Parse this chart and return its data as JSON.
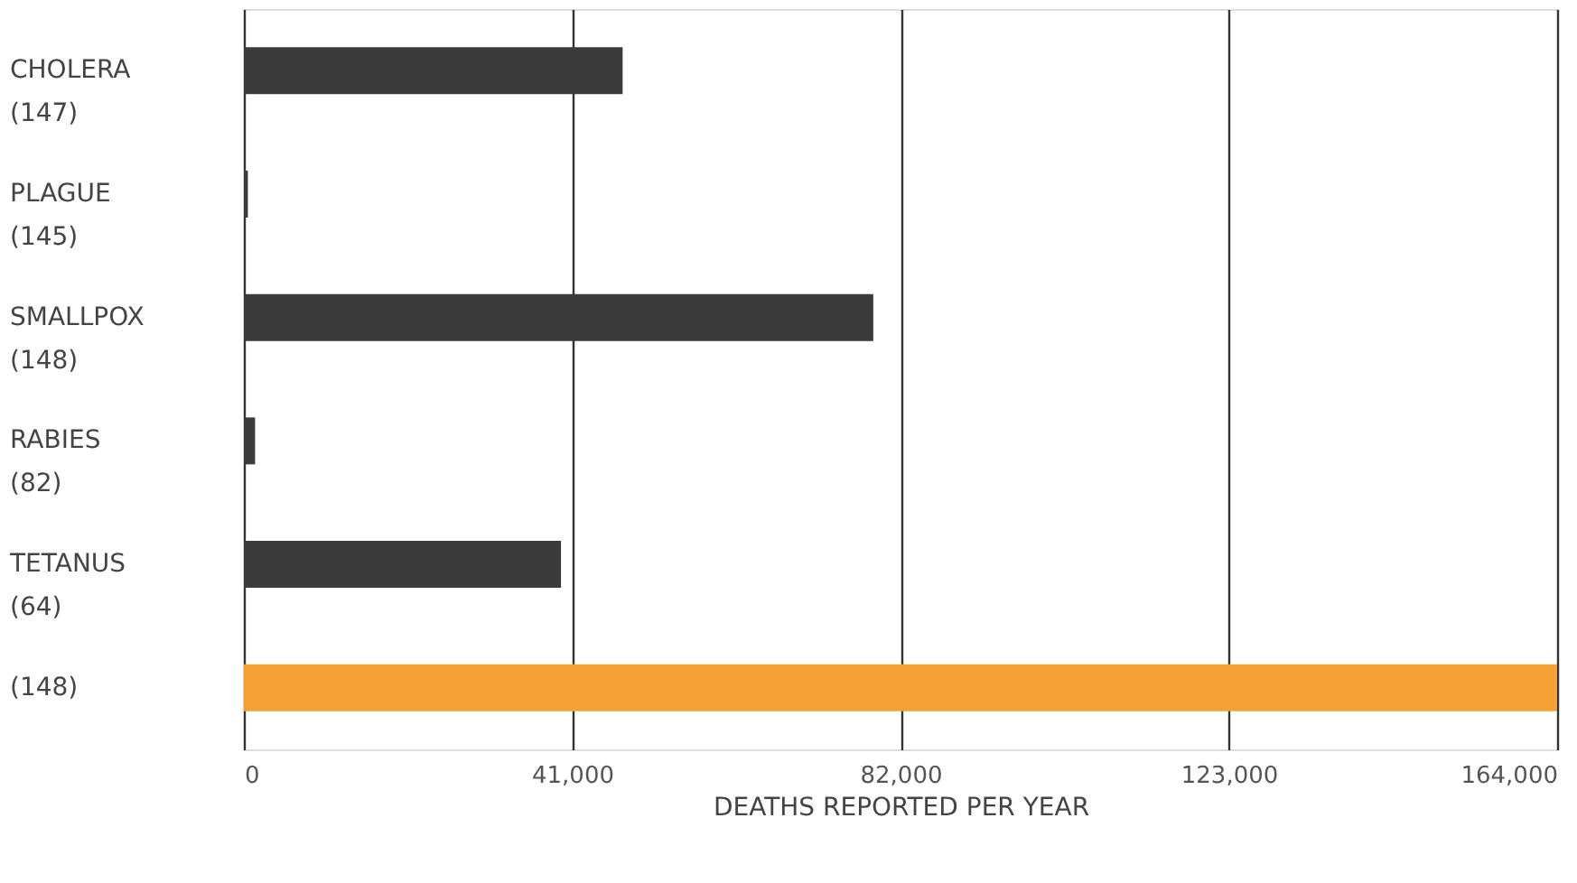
{
  "chart_data": {
    "type": "bar",
    "orientation": "horizontal",
    "xlabel": "DEATHS REPORTED PER YEAR",
    "categories": [
      "CHOLERA\n(147)",
      "PLAGUE\n(145)",
      "SMALLPOX\n(148)",
      "RABIES\n(82)",
      "TETANUS\n(64)",
      "(148)"
    ],
    "values": [
      47300,
      500,
      78600,
      1400,
      39600,
      164000
    ],
    "colors": [
      "#3b3b3b",
      "#3b3b3b",
      "#3b3b3b",
      "#3b3b3b",
      "#3b3b3b",
      "#f2a232"
    ],
    "xlim": [
      0,
      164000
    ],
    "xticks": [
      0,
      {
        "value": 41000,
        "label": "41,000"
      },
      {
        "value": 82000,
        "label": "82,000"
      },
      {
        "value": 123000,
        "label": "123,000"
      },
      {
        "value": 164000,
        "label": "164,000"
      }
    ],
    "grid": "x"
  }
}
